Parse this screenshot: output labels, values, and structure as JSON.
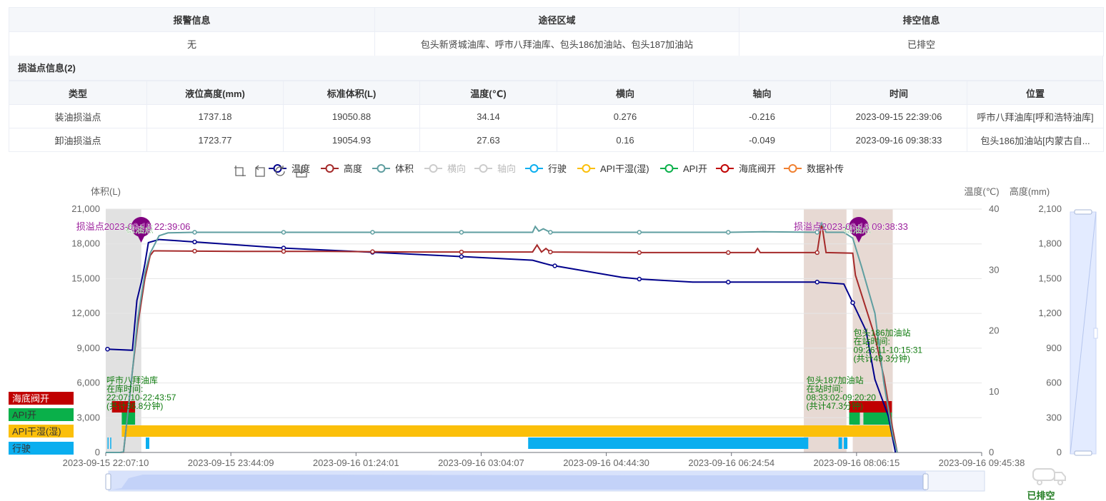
{
  "alarm_table": {
    "headers": [
      "报警信息",
      "途径区域",
      "排空信息"
    ],
    "values": [
      "无",
      "包头新贤城油库、呼市八拜油库、包头186加油站、包头187加油站",
      "已排空"
    ]
  },
  "leak_section": {
    "title": "损溢点信息(2)",
    "headers": [
      "类型",
      "液位高度(mm)",
      "标准体积(L)",
      "温度(℃)",
      "横向",
      "轴向",
      "时间",
      "位置"
    ],
    "rows": [
      [
        "装油损溢点",
        "1737.18",
        "19050.88",
        "34.14",
        "0.276",
        "-0.216",
        "2023-09-15 22:39:06",
        "呼市八拜油库[呼和浩特油库]"
      ],
      [
        "卸油损溢点",
        "1723.77",
        "19054.93",
        "27.63",
        "0.16",
        "-0.049",
        "2023-09-16 09:38:33",
        "包头186加油站[内蒙古自..."
      ]
    ]
  },
  "toolbar": {
    "icons": [
      "zoom-icon",
      "zoom-reset-icon",
      "restore-icon",
      "download-icon"
    ]
  },
  "chart_data": {
    "type": "line",
    "x_labels": [
      "2023-09-15 22:07:10",
      "2023-09-15 23:44:09",
      "2023-09-16 01:24:01",
      "2023-09-16 03:04:07",
      "2023-09-16 04:44:30",
      "2023-09-16 06:24:54",
      "2023-09-16 08:06:15",
      "2023-09-16 09:45:38"
    ],
    "x_range_min": [
      0,
      98.5
    ],
    "y_left": {
      "label": "体积(L)",
      "ticks": [
        "0",
        "3,000",
        "6,000",
        "9,000",
        "12,000",
        "15,000",
        "18,000",
        "21,000"
      ],
      "range": [
        0,
        21000
      ]
    },
    "y_temp": {
      "label": "温度(℃)",
      "ticks": [
        "0",
        "10",
        "20",
        "30",
        "40"
      ],
      "range": [
        0,
        40
      ]
    },
    "y_height": {
      "label": "高度(mm)",
      "ticks": [
        "0",
        "300",
        "600",
        "900",
        "1,200",
        "1,500",
        "1,800",
        "2,100"
      ],
      "range": [
        0,
        2100
      ]
    },
    "legend": [
      {
        "name": "温度",
        "color": "#00008b",
        "active": true
      },
      {
        "name": "高度",
        "color": "#a52a2a",
        "active": true
      },
      {
        "name": "体积",
        "color": "#5f9ea0",
        "active": true
      },
      {
        "name": "横向",
        "color": "#cccccc",
        "active": false
      },
      {
        "name": "轴向",
        "color": "#cccccc",
        "active": false
      },
      {
        "name": "行驶",
        "color": "#0aaeef",
        "active": true
      },
      {
        "name": "API干湿(湿)",
        "color": "#fbbf0a",
        "active": true
      },
      {
        "name": "API开",
        "color": "#0ab04a",
        "active": true
      },
      {
        "name": "海底阀开",
        "color": "#c00000",
        "active": true
      },
      {
        "name": "数据补传",
        "color": "#f08030",
        "active": true
      }
    ],
    "series": [
      {
        "name": "温度",
        "points": [
          [
            0,
            17
          ],
          [
            3,
            16.8
          ],
          [
            3.5,
            25
          ],
          [
            4,
            28
          ],
          [
            4.4,
            31
          ],
          [
            4.8,
            34.5
          ],
          [
            6,
            35
          ],
          [
            10,
            34.6
          ],
          [
            20,
            33.6
          ],
          [
            30,
            32.9
          ],
          [
            40,
            32.2
          ],
          [
            48,
            31.6
          ],
          [
            50,
            30.8
          ],
          [
            58,
            28.8
          ],
          [
            60,
            28.5
          ],
          [
            66,
            28
          ],
          [
            70,
            28
          ],
          [
            73.5,
            28
          ],
          [
            76,
            28
          ],
          [
            80,
            28
          ],
          [
            83,
            27.7
          ],
          [
            85.5,
            20
          ],
          [
            86.5,
            12
          ],
          [
            88,
            6
          ],
          [
            88.8,
            0
          ]
        ]
      },
      {
        "name": "高度",
        "points": [
          [
            0,
            0
          ],
          [
            1.6,
            0
          ],
          [
            2,
            2
          ],
          [
            3,
            700
          ],
          [
            3.6,
            1100
          ],
          [
            4.4,
            1500
          ],
          [
            5,
            1700
          ],
          [
            5.4,
            1740
          ],
          [
            6,
            1740
          ],
          [
            15,
            1735
          ],
          [
            25,
            1735
          ],
          [
            35,
            1730
          ],
          [
            45,
            1730
          ],
          [
            48,
            1730
          ],
          [
            48.5,
            1790
          ],
          [
            49,
            1730
          ],
          [
            49.5,
            1760
          ],
          [
            50,
            1730
          ],
          [
            60,
            1725
          ],
          [
            70,
            1725
          ],
          [
            73,
            1725
          ],
          [
            73.3,
            1760
          ],
          [
            73.6,
            1725
          ],
          [
            80,
            1725
          ],
          [
            80.5,
            1980
          ],
          [
            81,
            1725
          ],
          [
            84,
            1720
          ],
          [
            84.3,
            1530
          ],
          [
            86.5,
            1000
          ],
          [
            87.5,
            650
          ],
          [
            88.5,
            200
          ],
          [
            89,
            0
          ]
        ]
      },
      {
        "name": "体积",
        "points": [
          [
            0,
            0
          ],
          [
            1.6,
            0
          ],
          [
            2,
            50
          ],
          [
            3,
            7000
          ],
          [
            3.6,
            11500
          ],
          [
            4.4,
            15500
          ],
          [
            5,
            17200
          ],
          [
            6,
            18700
          ],
          [
            7,
            18950
          ],
          [
            10,
            19000
          ],
          [
            20,
            19000
          ],
          [
            30,
            19000
          ],
          [
            40,
            19000
          ],
          [
            48,
            19000
          ],
          [
            48.3,
            19500
          ],
          [
            48.7,
            19100
          ],
          [
            49.2,
            19300
          ],
          [
            50,
            19000
          ],
          [
            60,
            19000
          ],
          [
            70,
            19000
          ],
          [
            74,
            19050
          ],
          [
            80,
            19000
          ],
          [
            80.5,
            19800
          ],
          [
            81,
            19000
          ],
          [
            83,
            19000
          ],
          [
            84,
            18500
          ],
          [
            85,
            16000
          ],
          [
            86.5,
            12000
          ],
          [
            87.5,
            6000
          ],
          [
            88.5,
            1500
          ],
          [
            89,
            0
          ]
        ]
      }
    ],
    "temp_markers": [
      0.2,
      10,
      20,
      30,
      40,
      50.5,
      60,
      70,
      80,
      84
    ],
    "height_markers": [
      10,
      20,
      30,
      40,
      50,
      60,
      70,
      80
    ],
    "volume_markers": [
      10,
      20,
      30,
      40,
      50,
      60,
      70,
      80
    ],
    "shaded_ranges": [
      {
        "from": 0,
        "to": 4,
        "color": "#e1e1e1"
      },
      {
        "from": 78.5,
        "to": 83.3,
        "color": "#e7d9d3"
      },
      {
        "from": 84,
        "to": 88.5,
        "color": "#e7d9d3"
      }
    ],
    "bars": {
      "海底阀开": [
        [
          0.7,
          3.3
        ],
        [
          83.6,
          88.4
        ]
      ],
      "API开": [
        [
          1.8,
          3.3
        ],
        [
          83.6,
          84.8
        ],
        [
          85.2,
          88.4
        ]
      ],
      "API干湿(湿)": [
        [
          1.8,
          88.4
        ]
      ],
      "行驶": [
        [
          0.2,
          0.3
        ],
        [
          0.5,
          0.6
        ],
        [
          4.5,
          4.9
        ],
        [
          47.5,
          79
        ],
        [
          82.4,
          82.8
        ],
        [
          83.0,
          83.4
        ]
      ]
    },
    "status_labels": [
      "海底阀开",
      "API开",
      "API干湿(湿)",
      "行驶"
    ],
    "annotations": {
      "markers": [
        {
          "text": "损溢点2023-09-15 22:39:06",
          "tag": "稳油点",
          "x": 3.5
        },
        {
          "text": "损溢点2023-09-16 09:38:33",
          "tag": "稳油点",
          "x": 84.2
        }
      ],
      "stations": [
        {
          "lines": [
            "呼市八拜油库",
            "在库时间:",
            "22:07:10-22:43:57",
            "(共计36.8分钟)"
          ],
          "x": 0,
          "y_temp": 11.4
        },
        {
          "lines": [
            "包头187加油站",
            "在站时间:",
            "08:33:02-09:20:20",
            "(共计47.3分钟)"
          ],
          "x": 78.7,
          "y_temp": 11.4
        },
        {
          "lines": [
            "包头186加油站",
            "在站时间:",
            "09:26:11-10:15:31",
            "(共计49.3分钟)"
          ],
          "x": 84,
          "y_temp": 19.2
        }
      ]
    },
    "status_text": "已排空",
    "truck_icon": "tanker-truck-icon"
  }
}
